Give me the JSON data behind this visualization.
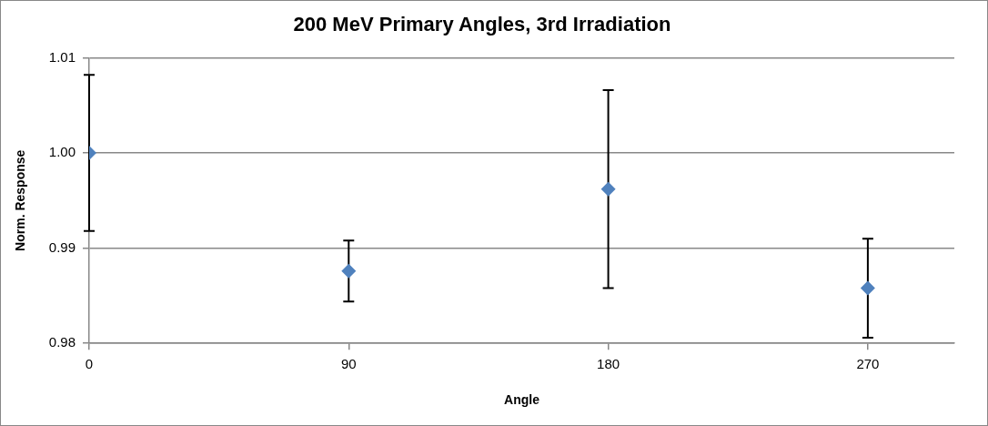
{
  "chart_data": {
    "type": "scatter",
    "title": "200 MeV Primary Angles, 3rd Irradiation",
    "xlabel": "Angle",
    "ylabel": "Norm. Response",
    "x": [
      0,
      90,
      180,
      270
    ],
    "series": [
      {
        "color": "#4f81bd",
        "values": [
          1.0,
          0.9876,
          0.9962,
          0.9858
        ],
        "errors": [
          0.0082,
          0.0032,
          0.0104,
          0.0052
        ]
      }
    ],
    "xlim": [
      0,
      300
    ],
    "xticks": [
      0,
      90,
      180,
      270
    ],
    "ylim": [
      0.98,
      1.01
    ],
    "yticks": [
      {
        "value": 0.98,
        "label": "0.98"
      },
      {
        "value": 0.99,
        "label": "0.99"
      },
      {
        "value": 1.0,
        "label": "1.00"
      },
      {
        "value": 1.01,
        "label": "1.01"
      }
    ],
    "grid": "y",
    "legend": false,
    "marker": "diamond"
  }
}
